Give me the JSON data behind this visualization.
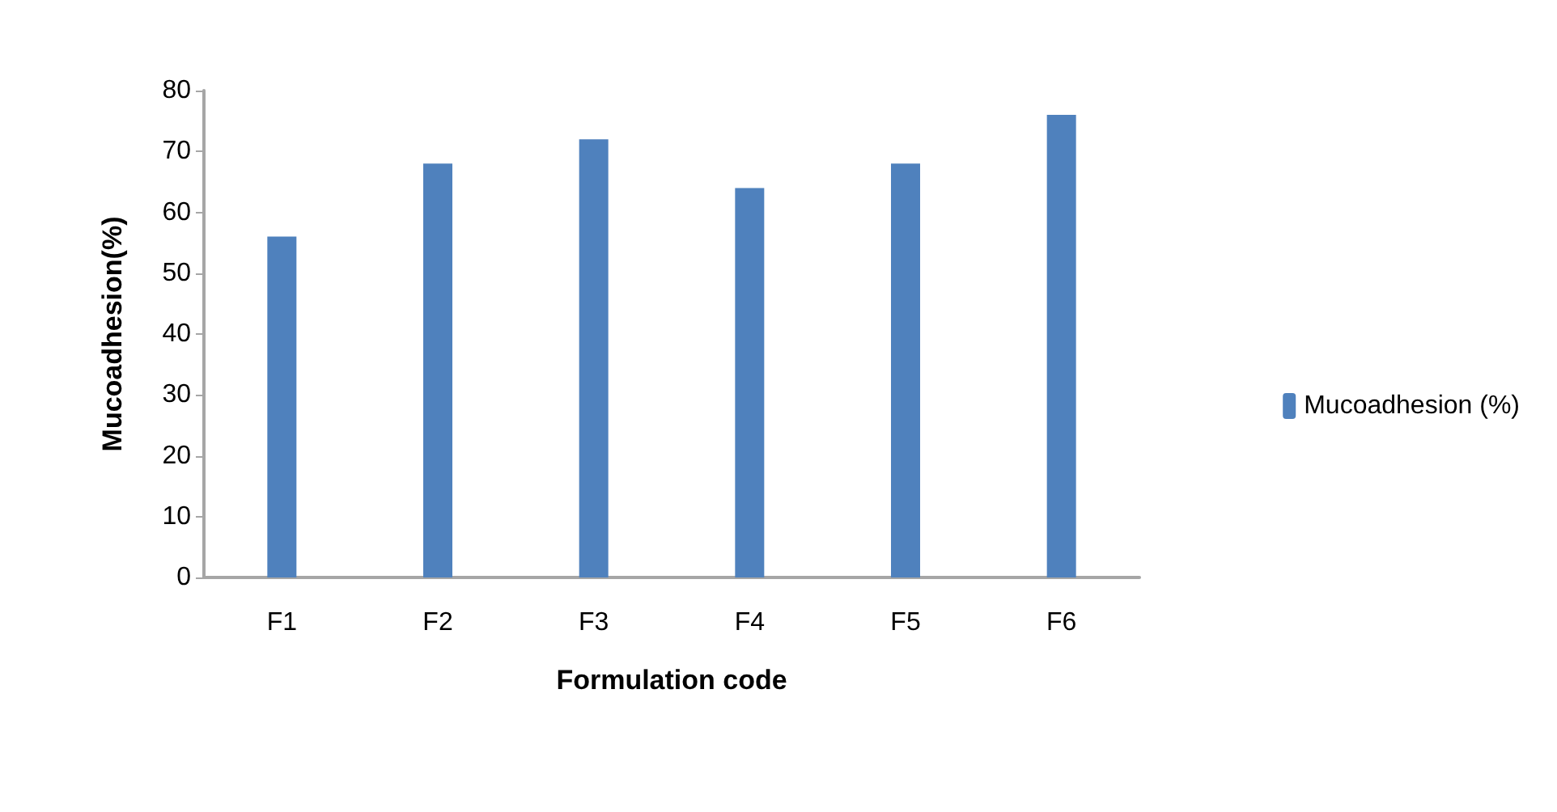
{
  "chart_data": {
    "type": "bar",
    "xlabel": "Formulation code",
    "ylabel": "Mucoadhesion(%)",
    "categories": [
      "F1",
      "F2",
      "F3",
      "F4",
      "F5",
      "F6"
    ],
    "series": [
      {
        "name": "Mucoadhesion (%)",
        "color": "#4f81bd",
        "values": [
          56,
          68,
          72,
          64,
          68,
          76
        ]
      }
    ],
    "ylim": [
      0,
      80
    ],
    "yticks": [
      0,
      10,
      20,
      30,
      40,
      50,
      60,
      70,
      80
    ],
    "grid": false,
    "legend": "right"
  }
}
